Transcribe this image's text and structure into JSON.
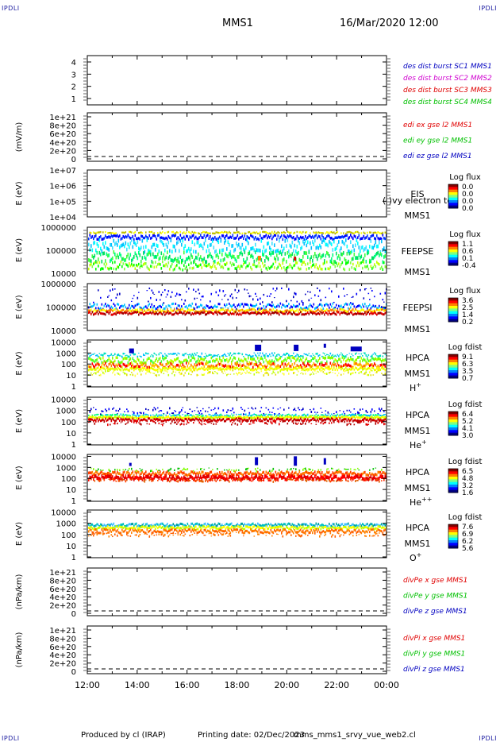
{
  "corners": {
    "tl": "IPDLI",
    "tr": "IPDLI",
    "bl": "IPDLI",
    "br": "IPDLI"
  },
  "header": {
    "mission": "MMS1",
    "datetime": "16/Mar/2020 12:00"
  },
  "footer": {
    "produced": "Produced by cl (IRAP)",
    "printing": "Printing date: 02/Dec/2023",
    "file": "mms_mms1_srvy_vue_web2.cl"
  },
  "colors": {
    "mms1": "#0000c0",
    "mms2": "#d000d0",
    "mms3": "#e00000",
    "mms4": "#00c000",
    "red": "#e00000",
    "green": "#00c000",
    "blue": "#0000c0",
    "colorbar": [
      "#000080",
      "#0000ff",
      "#0080ff",
      "#00ffff",
      "#80ff80",
      "#ffff00",
      "#ff8000",
      "#ff0000",
      "#800000"
    ]
  },
  "chart_data": [
    {
      "type": "line",
      "id": "dist",
      "xlabel": "",
      "ylabel": "",
      "yticks": [
        "1",
        "2",
        "3",
        "4"
      ],
      "legend": [
        "des dist burst SC1 MMS1",
        "des dist burst SC2 MMS2",
        "des dist burst SC3 MMS3",
        "des dist burst SC4 MMS4"
      ],
      "series": []
    },
    {
      "type": "line",
      "id": "edi",
      "ylabel": "(mV/m)",
      "yticks": [
        "0",
        "2e+20",
        "4e+20",
        "6e+20",
        "8e+20",
        "1e+21"
      ],
      "legend": [
        "edi ex gse l2 MMS1",
        "edi ey gse l2 MMS1",
        "edi ez gse l2 MMS1"
      ],
      "dashed_zero": true
    },
    {
      "type": "heatmap",
      "id": "eis",
      "ylabel": "E (eV)",
      "yticks": [
        "1e+04",
        "1e+05",
        "1e+06",
        "1e+07"
      ],
      "log_scale": true,
      "instrument": "EIS",
      "spacecraft": "MMS1",
      "overlay": "( )vy electron tof",
      "cbar_title": "Log flux",
      "cbar_ticks": [
        "0.0",
        "0.0",
        "0.0",
        "0.0"
      ]
    },
    {
      "type": "heatmap",
      "id": "feepse",
      "ylabel": "E (eV)",
      "yticks": [
        "10000",
        "100000",
        "1000000"
      ],
      "log_scale": true,
      "instrument": "FEEPSE",
      "spacecraft": "MMS1",
      "cbar_title": "Log flux",
      "cbar_ticks": [
        "1.1",
        "0.6",
        "0.1",
        "-0.4"
      ]
    },
    {
      "type": "heatmap",
      "id": "feepsi",
      "ylabel": "E (eV)",
      "yticks": [
        "10000",
        "100000",
        "1000000"
      ],
      "log_scale": true,
      "instrument": "FEEPSI",
      "spacecraft": "MMS1",
      "cbar_title": "Log flux",
      "cbar_ticks": [
        "3.6",
        "2.5",
        "1.4",
        "0.2"
      ]
    },
    {
      "type": "heatmap",
      "id": "hpca_h",
      "ylabel": "E (eV)",
      "yticks": [
        "1",
        "10",
        "100",
        "1000",
        "10000"
      ],
      "log_scale": true,
      "instrument": "HPCA",
      "spacecraft": "MMS1",
      "species": "H",
      "charge": "+",
      "cbar_title": "Log fdist",
      "cbar_ticks": [
        "9.1",
        "6.3",
        "3.5",
        "0.7"
      ]
    },
    {
      "type": "heatmap",
      "id": "hpca_he",
      "ylabel": "E (eV)",
      "yticks": [
        "1",
        "10",
        "100",
        "1000",
        "10000"
      ],
      "log_scale": true,
      "instrument": "HPCA",
      "spacecraft": "MMS1",
      "species": "He",
      "charge": "+",
      "cbar_title": "Log fdist",
      "cbar_ticks": [
        "6.4",
        "5.2",
        "4.1",
        "3.0"
      ]
    },
    {
      "type": "heatmap",
      "id": "hpca_hepp",
      "ylabel": "E (eV)",
      "yticks": [
        "1",
        "10",
        "100",
        "1000",
        "10000"
      ],
      "log_scale": true,
      "instrument": "HPCA",
      "spacecraft": "MMS1",
      "species": "He",
      "charge": "++",
      "cbar_title": "Log fdist",
      "cbar_ticks": [
        "6.5",
        "4.8",
        "3.2",
        "1.6"
      ]
    },
    {
      "type": "heatmap",
      "id": "hpca_o",
      "ylabel": "E (eV)",
      "yticks": [
        "1",
        "10",
        "100",
        "1000",
        "10000"
      ],
      "log_scale": true,
      "instrument": "HPCA",
      "spacecraft": "MMS1",
      "species": "O",
      "charge": "+",
      "cbar_title": "Log fdist",
      "cbar_ticks": [
        "7.6",
        "6.9",
        "6.2",
        "5.6"
      ]
    },
    {
      "type": "line",
      "id": "divpe",
      "ylabel": "(nPa/km)",
      "yticks": [
        "0",
        "2e+20",
        "4e+20",
        "6e+20",
        "8e+20",
        "1e+21"
      ],
      "legend": [
        "divPe x gse MMS1",
        "divPe y gse MMS1",
        "divPe z gse MMS1"
      ],
      "dashed_zero": true
    },
    {
      "type": "line",
      "id": "divpi",
      "ylabel": "(nPa/km)",
      "yticks": [
        "0",
        "2e+20",
        "4e+20",
        "6e+20",
        "8e+20",
        "1e+21"
      ],
      "legend": [
        "divPi x gse MMS1",
        "divPi y gse MMS1",
        "divPi z gse MMS1"
      ],
      "dashed_zero": true
    }
  ],
  "xaxis": {
    "ticks": [
      "12:00",
      "14:00",
      "16:00",
      "18:00",
      "20:00",
      "22:00",
      "00:00"
    ]
  }
}
